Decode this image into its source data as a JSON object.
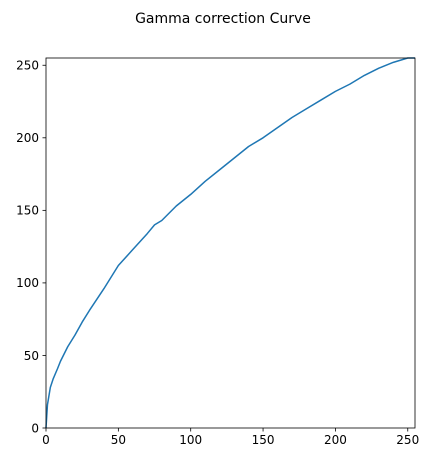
{
  "chart_data": {
    "type": "line",
    "title": "Gamma correction Curve",
    "xlabel": "",
    "ylabel": "",
    "xlim": [
      0,
      255
    ],
    "ylim": [
      0,
      255
    ],
    "grid": false,
    "xticks": [
      0,
      50,
      100,
      150,
      200,
      250
    ],
    "yticks": [
      0,
      50,
      100,
      150,
      200,
      250
    ],
    "series": [
      {
        "color": "#1f77b4",
        "x": [
          0,
          1,
          2,
          3,
          5,
          8,
          10,
          15,
          20,
          25,
          30,
          40,
          50,
          60,
          70,
          75,
          80,
          90,
          100,
          110,
          120,
          130,
          140,
          150,
          160,
          170,
          180,
          190,
          200,
          210,
          220,
          230,
          240,
          250,
          255
        ],
        "y": [
          0,
          16,
          22,
          28,
          34,
          41,
          46,
          56,
          64,
          73,
          81,
          96,
          112,
          123,
          134,
          140,
          143,
          153,
          161,
          170,
          178,
          186,
          194,
          200,
          207,
          214,
          220,
          226,
          232,
          237,
          243,
          248,
          252,
          255,
          255
        ]
      }
    ]
  }
}
